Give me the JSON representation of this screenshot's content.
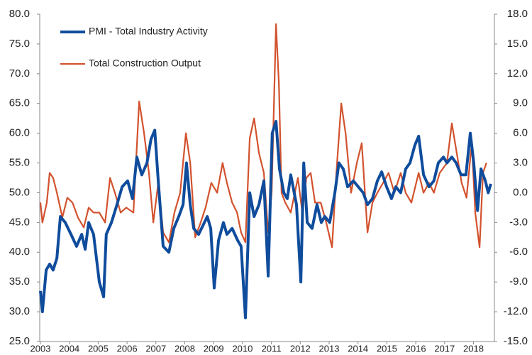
{
  "chart_data": {
    "type": "line",
    "xlim": [
      2003,
      2018.7
    ],
    "xticks": [
      2003,
      2004,
      2005,
      2006,
      2007,
      2008,
      2009,
      2010,
      2011,
      2012,
      2013,
      2014,
      2015,
      2016,
      2017,
      2018
    ],
    "ylim": [
      25,
      80
    ],
    "yticks": [
      {
        "value": 25,
        "label": "25.0"
      },
      {
        "value": 30,
        "label": "30.0"
      },
      {
        "value": 35,
        "label": "35.0"
      },
      {
        "value": 40,
        "label": "40.0"
      },
      {
        "value": 45,
        "label": "45.0"
      },
      {
        "value": 50,
        "label": "50.0"
      },
      {
        "value": 55,
        "label": "55.0"
      },
      {
        "value": 60,
        "label": "60.0"
      },
      {
        "value": 65,
        "label": "65.0"
      },
      {
        "value": 70,
        "label": "70.0"
      },
      {
        "value": 75,
        "label": "75.0"
      },
      {
        "value": 80,
        "label": "80.0"
      }
    ],
    "y2lim": [
      -15,
      18
    ],
    "y2ticks": [
      {
        "value": -15,
        "label": "-15.0"
      },
      {
        "value": -12,
        "label": "-12.0"
      },
      {
        "value": -9,
        "label": "-9.0"
      },
      {
        "value": -6,
        "label": "-6.0"
      },
      {
        "value": -3,
        "label": "-3.0"
      },
      {
        "value": 0,
        "label": "0.0"
      },
      {
        "value": 3,
        "label": "3.0"
      },
      {
        "value": 6,
        "label": "6.0"
      },
      {
        "value": 9,
        "label": "9.0"
      },
      {
        "value": 12,
        "label": "12.0"
      },
      {
        "value": 15,
        "label": "15.0"
      },
      {
        "value": 18,
        "label": "18.0"
      }
    ],
    "series": [
      {
        "name": "PMI - Total Industry Activity",
        "color": "#0f4c9c",
        "width": 4,
        "x": [
          2003.0,
          2003.07,
          2003.2,
          2003.32,
          2003.44,
          2003.57,
          2003.69,
          2003.86,
          2004.06,
          2004.25,
          2004.43,
          2004.55,
          2004.67,
          2004.84,
          2005.04,
          2005.19,
          2005.28,
          2005.46,
          2005.65,
          2005.83,
          2006.02,
          2006.19,
          2006.34,
          2006.51,
          2006.69,
          2006.83,
          2006.96,
          2007.08,
          2007.25,
          2007.45,
          2007.62,
          2007.79,
          2007.94,
          2008.06,
          2008.19,
          2008.31,
          2008.48,
          2008.63,
          2008.78,
          2008.9,
          2009.02,
          2009.17,
          2009.34,
          2009.46,
          2009.64,
          2009.83,
          2009.95,
          2010.1,
          2010.25,
          2010.4,
          2010.57,
          2010.74,
          2010.89,
          2011.03,
          2011.16,
          2011.28,
          2011.43,
          2011.55,
          2011.67,
          2011.87,
          2012.02,
          2012.12,
          2012.24,
          2012.41,
          2012.58,
          2012.73,
          2012.85,
          2013.02,
          2013.2,
          2013.34,
          2013.49,
          2013.64,
          2013.84,
          2014.01,
          2014.18,
          2014.33,
          2014.5,
          2014.67,
          2014.82,
          2014.99,
          2015.16,
          2015.31,
          2015.48,
          2015.65,
          2015.8,
          2015.97,
          2016.1,
          2016.27,
          2016.46,
          2016.63,
          2016.78,
          2016.96,
          2017.08,
          2017.25,
          2017.4,
          2017.57,
          2017.74,
          2017.89,
          2018.01,
          2018.14,
          2018.26,
          2018.41,
          2018.51,
          2018.6
        ],
        "values": [
          33.5,
          30,
          37,
          38,
          37,
          39,
          46,
          45,
          43,
          41,
          43,
          40.5,
          45,
          43,
          35,
          32.5,
          43,
          45,
          48,
          51,
          52,
          49,
          56,
          53,
          55,
          59,
          60.5,
          52,
          41,
          40,
          44,
          46,
          48,
          55,
          48,
          44,
          43,
          44.5,
          46,
          44,
          34,
          42,
          45,
          43,
          44,
          42,
          41,
          29,
          50,
          46,
          48,
          52,
          36,
          60,
          62,
          54,
          50,
          49,
          53,
          48,
          35,
          55,
          45,
          44,
          48,
          45,
          46,
          45,
          50,
          55,
          54,
          51,
          52,
          51,
          50,
          48,
          49,
          52,
          53.5,
          51,
          49,
          51,
          50,
          54,
          55,
          58,
          59.5,
          53,
          51,
          52,
          55,
          56,
          55,
          56,
          55,
          53,
          53,
          60,
          55,
          47,
          54,
          52,
          50,
          51.5
        ]
      },
      {
        "name": "Total Construction Output",
        "color": "#d2522e",
        "width": 2.2,
        "axis": "y2",
        "x": [
          2003.0,
          2003.07,
          2003.22,
          2003.32,
          2003.44,
          2003.57,
          2003.76,
          2003.93,
          2004.11,
          2004.3,
          2004.5,
          2004.67,
          2004.84,
          2005.04,
          2005.24,
          2005.41,
          2005.58,
          2005.78,
          2005.97,
          2006.22,
          2006.42,
          2006.59,
          2006.76,
          2006.91,
          2007.08,
          2007.25,
          2007.45,
          2007.64,
          2007.84,
          2008.04,
          2008.19,
          2008.36,
          2008.55,
          2008.72,
          2008.92,
          2009.12,
          2009.31,
          2009.46,
          2009.64,
          2009.81,
          2009.95,
          2010.1,
          2010.25,
          2010.4,
          2010.57,
          2010.74,
          2010.89,
          2011.01,
          2011.16,
          2011.26,
          2011.35,
          2011.48,
          2011.67,
          2011.92,
          2012.07,
          2012.21,
          2012.36,
          2012.51,
          2012.71,
          2012.9,
          2013.1,
          2013.25,
          2013.42,
          2013.57,
          2013.76,
          2013.96,
          2014.13,
          2014.33,
          2014.5,
          2014.67,
          2014.87,
          2015.06,
          2015.26,
          2015.48,
          2015.65,
          2015.85,
          2016.1,
          2016.27,
          2016.46,
          2016.63,
          2016.83,
          2017.08,
          2017.25,
          2017.42,
          2017.59,
          2017.76,
          2017.94,
          2018.06,
          2018.21,
          2018.33,
          2018.45
        ],
        "values": [
          -1,
          -3,
          -1,
          2,
          1.5,
          0,
          -2.5,
          -0.5,
          -1,
          -2.5,
          -3.5,
          -1.5,
          -2,
          -2,
          -3,
          1.5,
          0,
          -2,
          -1.5,
          -2,
          9.2,
          6,
          2,
          -3,
          1,
          -4,
          -5,
          -2,
          0,
          6,
          3,
          -4.5,
          -3,
          -1.5,
          1,
          0,
          3,
          1,
          -1,
          -2,
          -4,
          -5,
          5.5,
          7.5,
          4,
          2,
          -4,
          0,
          17,
          11,
          0,
          -1,
          -2,
          1.5,
          -2,
          1.5,
          2,
          -1,
          -1,
          -3,
          -5.5,
          2,
          9,
          6,
          0,
          3,
          5,
          -4,
          -1,
          0,
          1,
          2,
          0,
          2,
          0,
          -1,
          2,
          0,
          1,
          0,
          2,
          3,
          7,
          4,
          1,
          -0.5,
          5,
          -2,
          -5.5,
          2,
          3
        ]
      }
    ]
  }
}
